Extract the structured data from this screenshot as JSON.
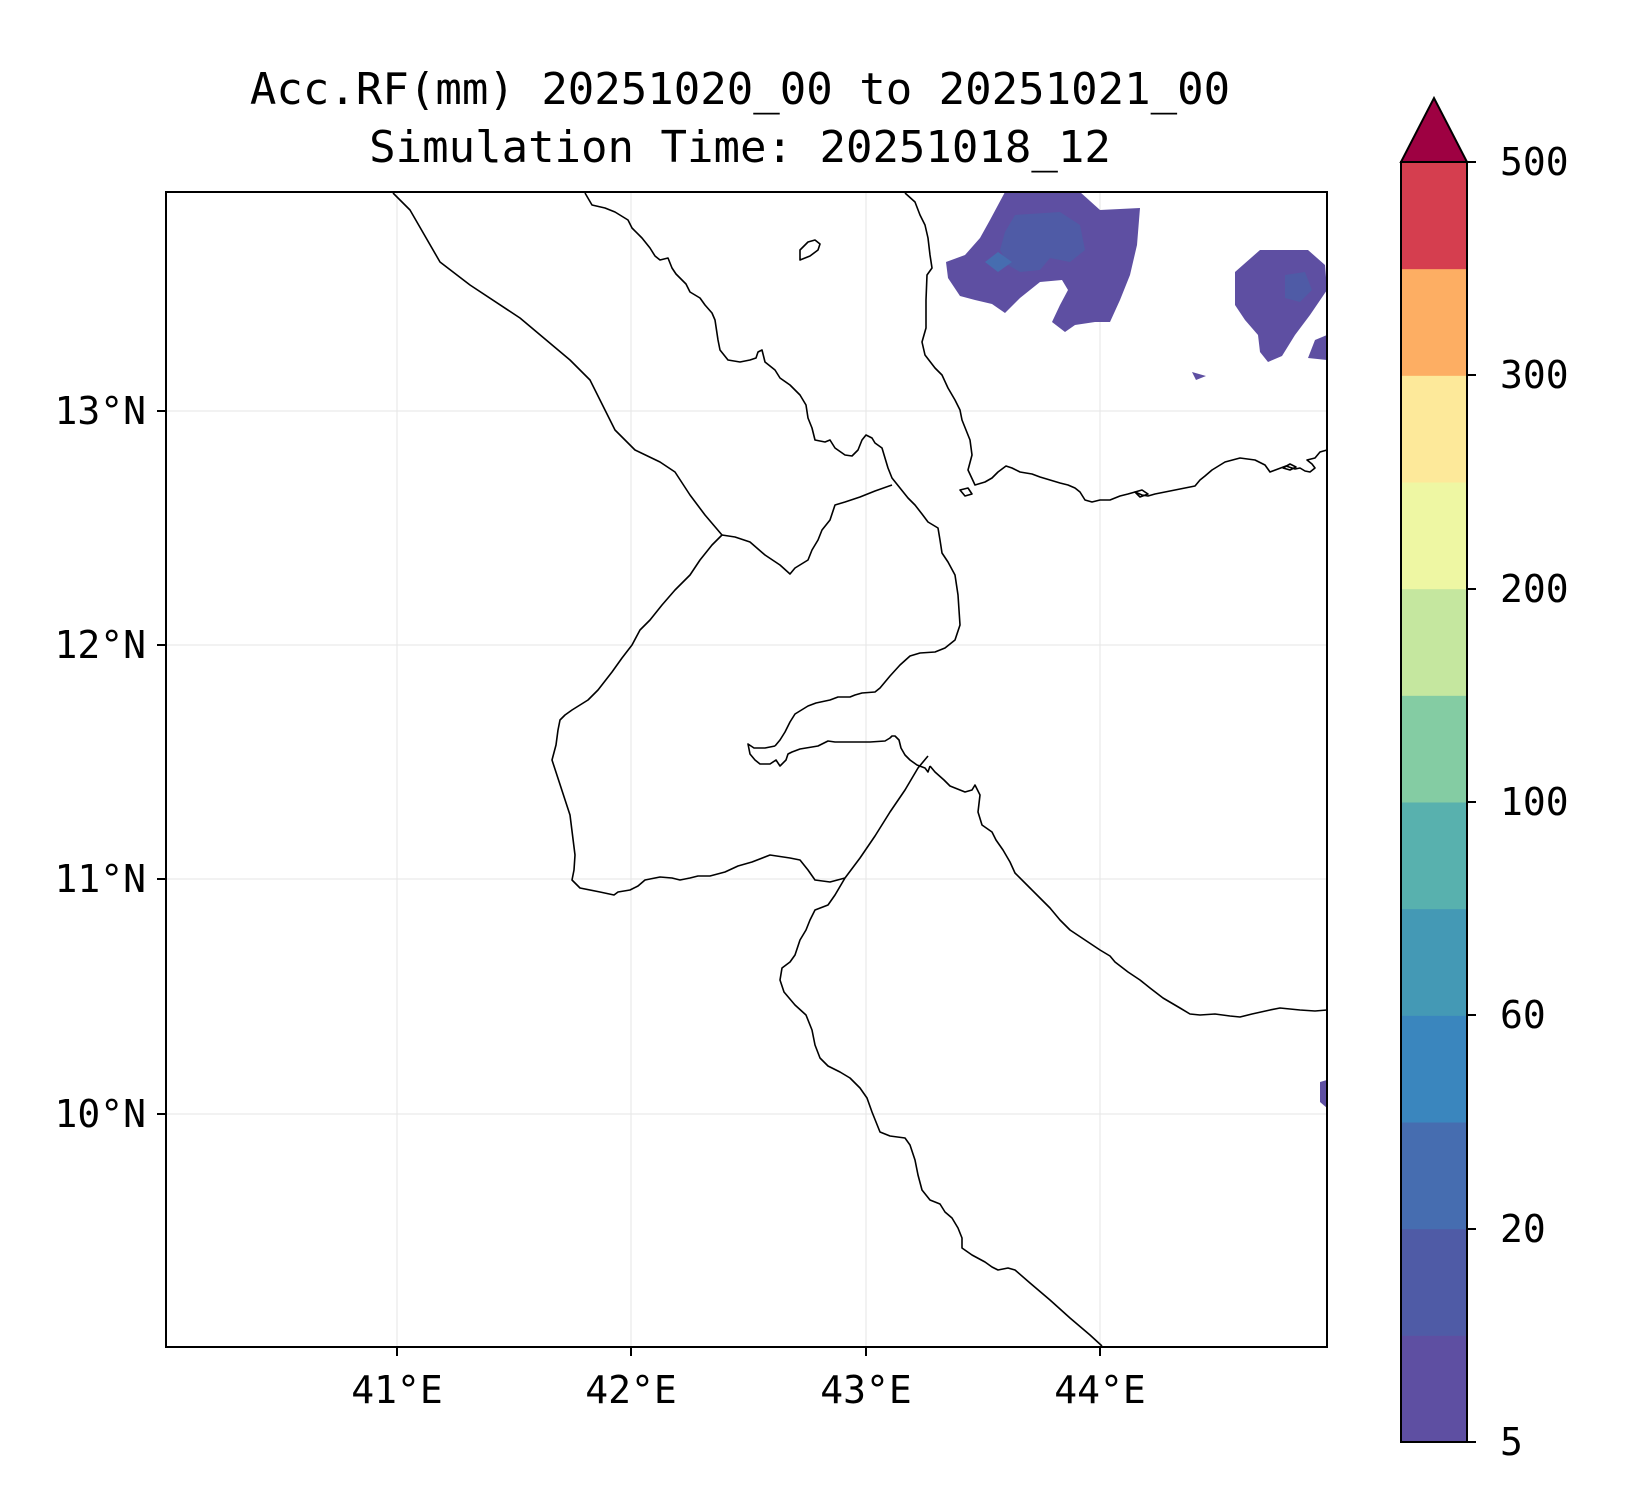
{
  "title": {
    "line1": "Acc.RF(mm) 20251020_00 to 20251021_00",
    "line2": "Simulation Time: 20251018_12"
  },
  "map": {
    "x_ticks": [
      "41°E",
      "42°E",
      "43°E",
      "44°E"
    ],
    "y_ticks": [
      "13°N",
      "12°N",
      "11°N",
      "10°N"
    ],
    "lon_range": [
      40.02,
      44.97
    ],
    "lat_range": [
      9.07,
      13.93
    ]
  },
  "colorbar": {
    "tick_labels": [
      "5",
      "20",
      "60",
      "100",
      "200",
      "300",
      "500"
    ],
    "levels": [
      5,
      10,
      20,
      40,
      60,
      80,
      100,
      150,
      200,
      250,
      300,
      400,
      500
    ],
    "colors": [
      "#5e4fa2",
      "#4f5ba6",
      "#466db0",
      "#3a86be",
      "#4499b5",
      "#58b1ae",
      "#84cca3",
      "#c5e79f",
      "#eef7a3",
      "#fde99a",
      "#fdae63",
      "#d53e4f"
    ],
    "extend_color": "#9e0142"
  },
  "rain_areas": [
    {
      "level": "5-10",
      "color": "#5e4fa2",
      "location": "north-central sea, around 43.4–44.2°E, 13.4–13.9°N"
    },
    {
      "level": "5-10",
      "color": "#5e4fa2",
      "location": "northeast, around 44.6–45°E, 13.2–13.6°N"
    },
    {
      "level": "5-10",
      "color": "#5e4fa2",
      "location": "east edge near 10.1°N"
    },
    {
      "level": "10-20",
      "color": "#4f5ba6",
      "location": "core near 43.6°E 13.6°N"
    }
  ]
}
